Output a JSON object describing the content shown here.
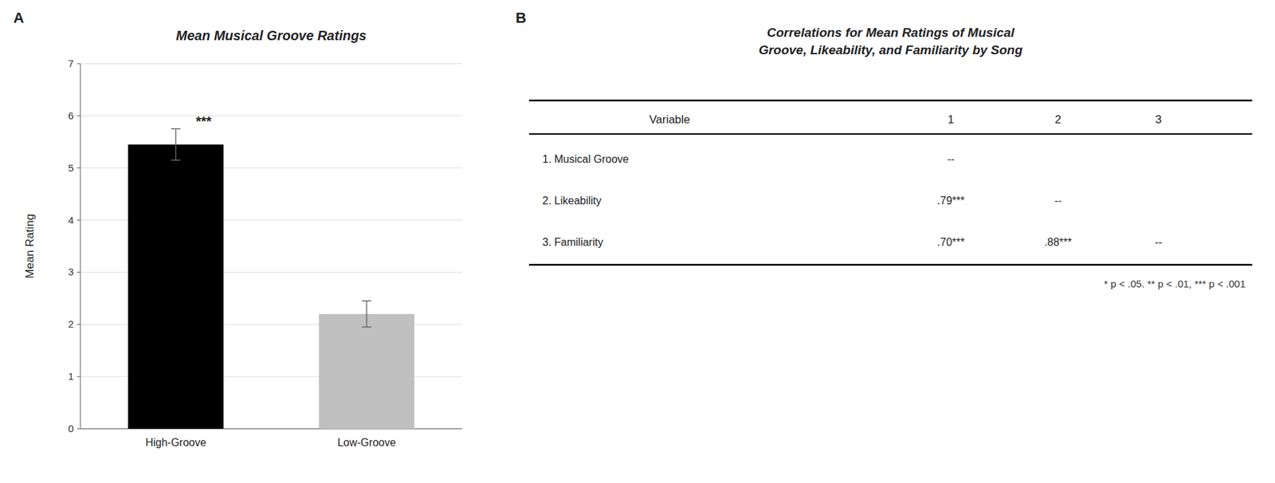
{
  "chart_data": [
    {
      "type": "bar",
      "panel_label": "A",
      "title": "Mean Musical Groove Ratings",
      "ylabel": "Mean Rating",
      "categories": [
        "High-Groove",
        "Low-Groove"
      ],
      "values": [
        5.45,
        2.2
      ],
      "errors": [
        0.3,
        0.25
      ],
      "colors": [
        "#000000",
        "#c0c0c0"
      ],
      "ylim": [
        0,
        7
      ],
      "yticks": [
        0,
        1,
        2,
        3,
        4,
        5,
        6,
        7
      ],
      "grid": true,
      "annotation": "***"
    },
    {
      "type": "table",
      "panel_label": "B",
      "title": [
        "Correlations for Mean Ratings of Musical",
        "Groove, Likeability, and Familiarity by Song"
      ],
      "columns": [
        "Variable",
        "1",
        "2",
        "3"
      ],
      "rows": [
        [
          "1. Musical Groove",
          "--",
          null,
          null
        ],
        [
          "2. Likeability",
          ".79***",
          "--",
          null
        ],
        [
          "3. Familiarity",
          ".70***",
          ".88***",
          "--"
        ]
      ],
      "note": "* p < .05. ** p < .01, *** p < .001"
    }
  ]
}
